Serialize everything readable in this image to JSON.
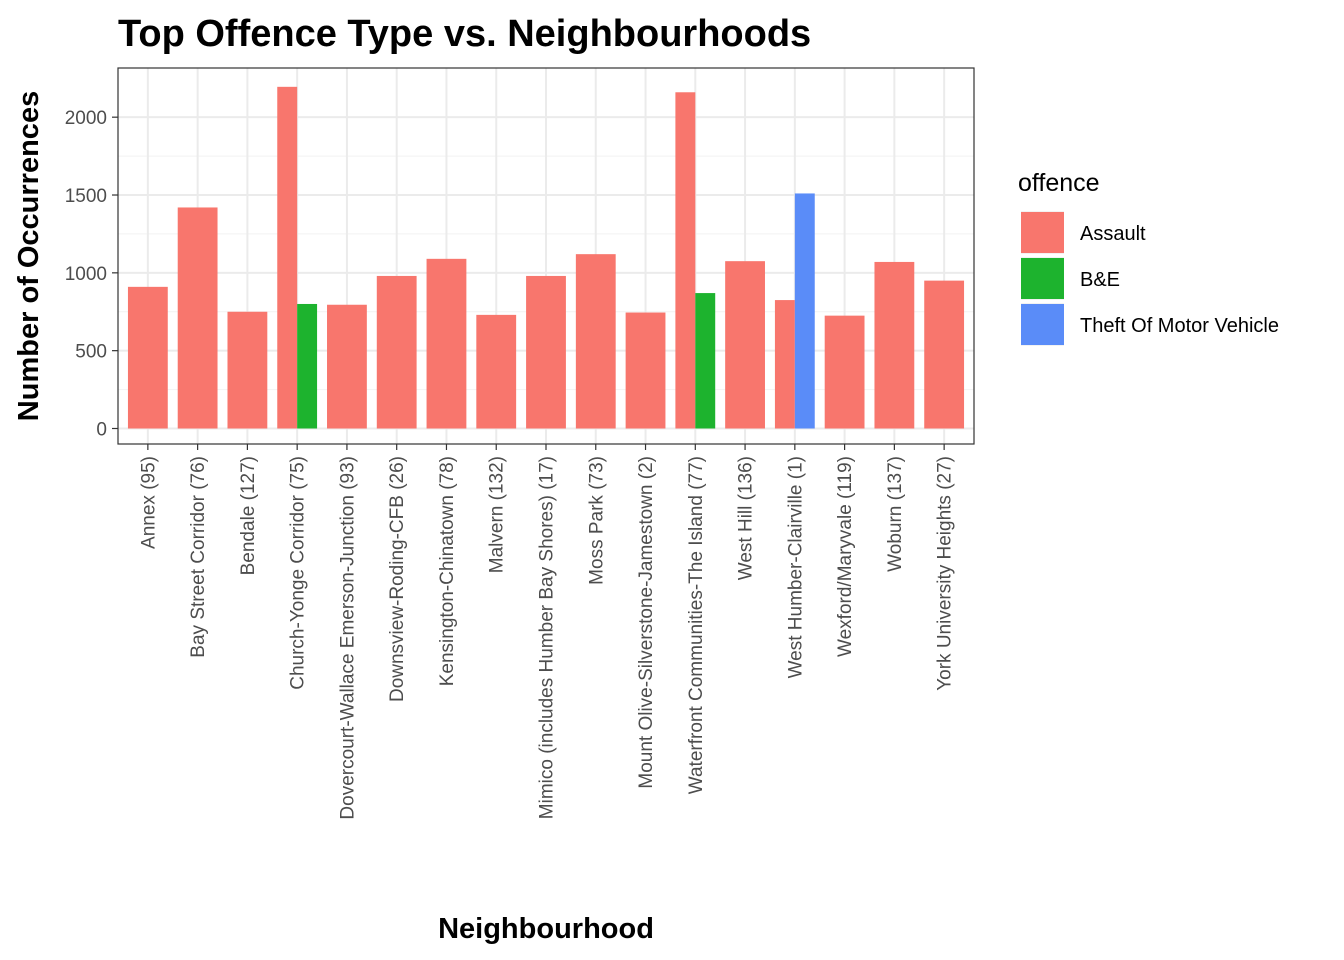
{
  "chart_data": {
    "type": "bar",
    "title": "Top Offence Type vs. Neighbourhoods",
    "xlabel": "Neighbourhood",
    "ylabel": "Number of Occurrences",
    "ylim": [
      0,
      2240
    ],
    "yticks": [
      0,
      500,
      1000,
      1500,
      2000
    ],
    "grid": true,
    "legend": {
      "title": "offence",
      "position": "right",
      "entries": [
        {
          "name": "Assault",
          "color": "#f8766d"
        },
        {
          "name": "B&E",
          "color": "#1db32e"
        },
        {
          "name": "Theft Of Motor Vehicle",
          "color": "#5a8cf8"
        }
      ]
    },
    "categories": [
      "Annex (95)",
      "Bay Street Corridor (76)",
      "Bendale (127)",
      "Church-Yonge Corridor (75)",
      "Dovercourt-Wallace Emerson-Junction (93)",
      "Downsview-Roding-CFB (26)",
      "Kensington-Chinatown (78)",
      "Malvern (132)",
      "Mimico (includes Humber Bay Shores) (17)",
      "Moss Park (73)",
      "Mount Olive-Silverstone-Jamestown (2)",
      "Waterfront Communities-The Island (77)",
      "West Hill (136)",
      "West Humber-Clairville (1)",
      "Wexford/Maryvale (119)",
      "Woburn (137)",
      "York University Heights (27)"
    ],
    "bars": [
      {
        "category": "Annex (95)",
        "offence": "Assault",
        "value": 910
      },
      {
        "category": "Bay Street Corridor (76)",
        "offence": "Assault",
        "value": 1420
      },
      {
        "category": "Bendale (127)",
        "offence": "Assault",
        "value": 750
      },
      {
        "category": "Church-Yonge Corridor (75)",
        "offence": "Assault",
        "value": 2195
      },
      {
        "category": "Church-Yonge Corridor (75)",
        "offence": "B&E",
        "value": 800
      },
      {
        "category": "Dovercourt-Wallace Emerson-Junction (93)",
        "offence": "Assault",
        "value": 795
      },
      {
        "category": "Downsview-Roding-CFB (26)",
        "offence": "Assault",
        "value": 980
      },
      {
        "category": "Kensington-Chinatown (78)",
        "offence": "Assault",
        "value": 1090
      },
      {
        "category": "Malvern (132)",
        "offence": "Assault",
        "value": 730
      },
      {
        "category": "Mimico (includes Humber Bay Shores) (17)",
        "offence": "Assault",
        "value": 980
      },
      {
        "category": "Moss Park (73)",
        "offence": "Assault",
        "value": 1120
      },
      {
        "category": "Mount Olive-Silverstone-Jamestown (2)",
        "offence": "Assault",
        "value": 745
      },
      {
        "category": "Waterfront Communities-The Island (77)",
        "offence": "Assault",
        "value": 2160
      },
      {
        "category": "Waterfront Communities-The Island (77)",
        "offence": "B&E",
        "value": 870
      },
      {
        "category": "West Hill (136)",
        "offence": "Assault",
        "value": 1075
      },
      {
        "category": "West Humber-Clairville (1)",
        "offence": "Assault",
        "value": 825
      },
      {
        "category": "West Humber-Clairville (1)",
        "offence": "Theft Of Motor Vehicle",
        "value": 1510
      },
      {
        "category": "Wexford/Maryvale (119)",
        "offence": "Assault",
        "value": 725
      },
      {
        "category": "Woburn (137)",
        "offence": "Assault",
        "value": 1070
      },
      {
        "category": "York University Heights (27)",
        "offence": "Assault",
        "value": 950
      }
    ]
  }
}
